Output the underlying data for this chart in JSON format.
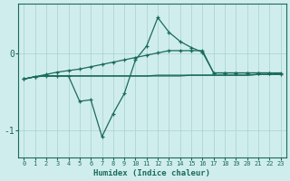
{
  "xlabel": "Humidex (Indice chaleur)",
  "bg_color": "#d0eded",
  "grid_color": "#aed4d4",
  "line_color": "#1a6b5a",
  "x": [
    0,
    1,
    2,
    3,
    4,
    5,
    6,
    7,
    8,
    9,
    10,
    11,
    12,
    13,
    14,
    15,
    16,
    17,
    18,
    19,
    20,
    21,
    22,
    23
  ],
  "line_flat": [
    -0.33,
    -0.3,
    -0.29,
    -0.29,
    -0.29,
    -0.29,
    -0.29,
    -0.29,
    -0.29,
    -0.29,
    -0.29,
    -0.29,
    -0.28,
    -0.28,
    -0.28,
    -0.28,
    -0.28,
    -0.28,
    -0.28,
    -0.28,
    -0.28,
    -0.27,
    -0.27,
    -0.27
  ],
  "line_flat2": [
    -0.33,
    -0.3,
    -0.29,
    -0.29,
    -0.29,
    -0.29,
    -0.29,
    -0.29,
    -0.29,
    -0.29,
    -0.29,
    -0.29,
    -0.29,
    -0.29,
    -0.29,
    -0.28,
    -0.28,
    -0.28,
    -0.28,
    -0.28,
    -0.28,
    -0.27,
    -0.27,
    -0.27
  ],
  "line_diag": [
    -0.33,
    -0.3,
    -0.27,
    -0.24,
    -0.22,
    -0.2,
    -0.17,
    -0.14,
    -0.11,
    -0.08,
    -0.05,
    -0.02,
    0.01,
    0.04,
    0.04,
    0.04,
    0.04,
    -0.25,
    -0.25,
    -0.25,
    -0.25,
    -0.25,
    -0.25,
    -0.25
  ],
  "line_peaked": [
    -0.33,
    -0.3,
    -0.29,
    -0.29,
    -0.29,
    -0.62,
    -0.6,
    -1.08,
    -0.78,
    -0.52,
    -0.08,
    0.1,
    0.47,
    0.28,
    0.16,
    0.08,
    0.02,
    -0.25,
    -0.25,
    -0.25,
    -0.25,
    -0.25,
    -0.25,
    -0.27
  ],
  "ylim": [
    -1.35,
    0.65
  ],
  "yticks": [
    -1,
    0
  ],
  "xlim": [
    -0.5,
    23.5
  ]
}
